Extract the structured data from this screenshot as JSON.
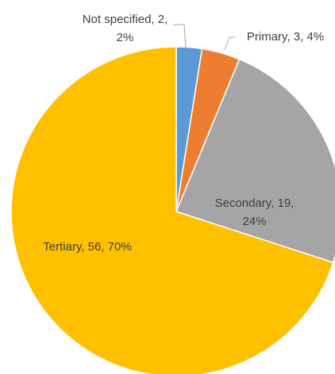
{
  "chart_data": {
    "type": "pie",
    "values": [
      2,
      3,
      19,
      56
    ],
    "value_labels": [
      "Not specified, 2, 2%",
      "Primary, 3, 4%",
      "Secondary, 19, 24%",
      "Tertiary, 56, 70%"
    ],
    "colors": [
      "#5b9bd5",
      "#ed7d31",
      "#a5a5a5",
      "#ffc000"
    ],
    "start_angle": 0,
    "direction": "clockwise"
  }
}
